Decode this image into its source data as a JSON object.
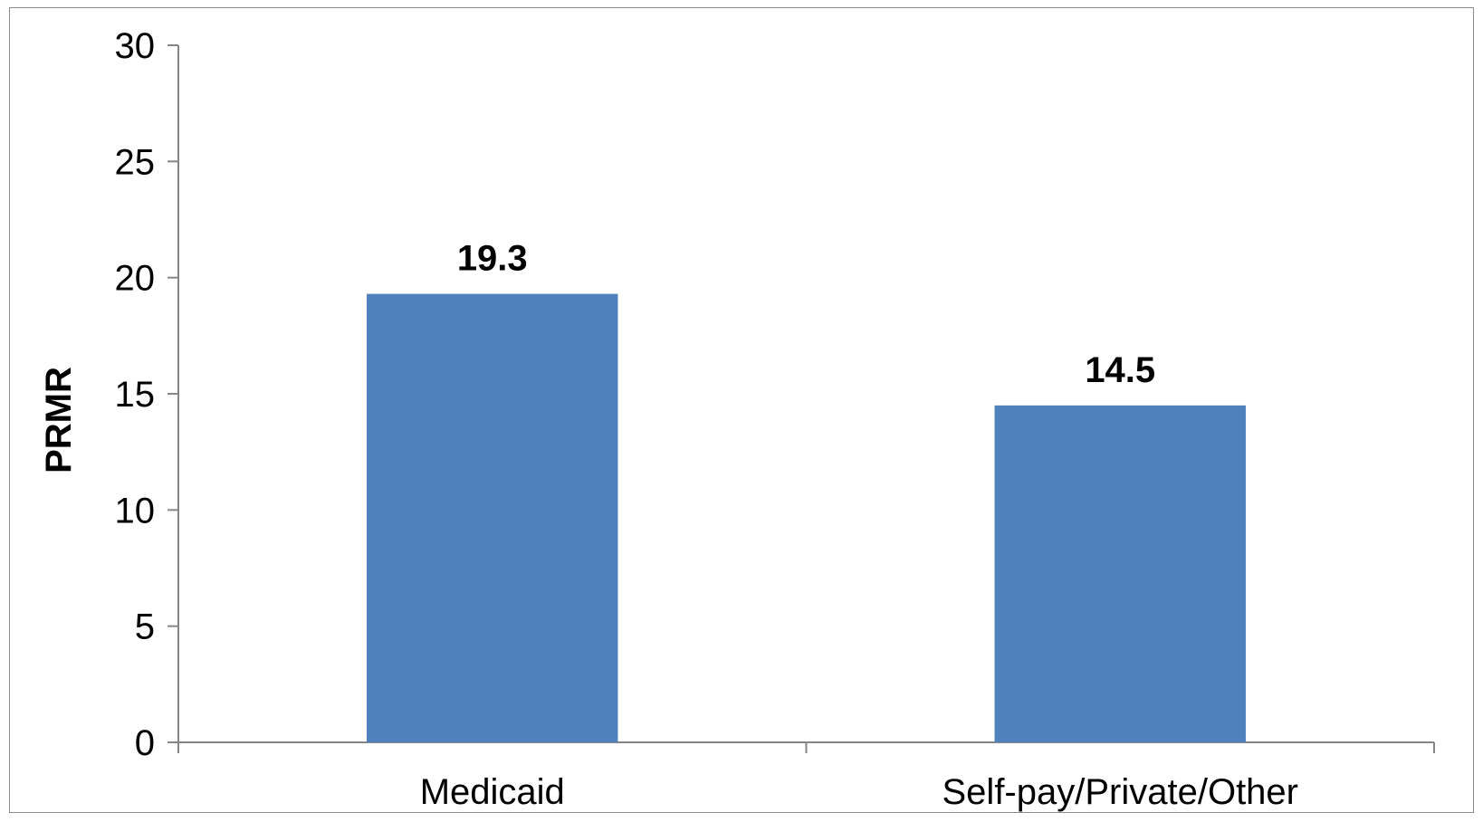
{
  "chart_data": {
    "type": "bar",
    "title": "",
    "xlabel": "",
    "ylabel": "PRMR",
    "categories": [
      "Medicaid",
      "Self-pay/Private/Other"
    ],
    "values": [
      19.3,
      14.5
    ],
    "data_labels": [
      "19.3",
      "14.5"
    ],
    "ylim": [
      0,
      30
    ],
    "yticks": [
      0,
      5,
      10,
      15,
      20,
      25,
      30
    ],
    "grid": false,
    "legend": "none",
    "bar_color": "#4f81bd",
    "axis_color": "#868686"
  }
}
